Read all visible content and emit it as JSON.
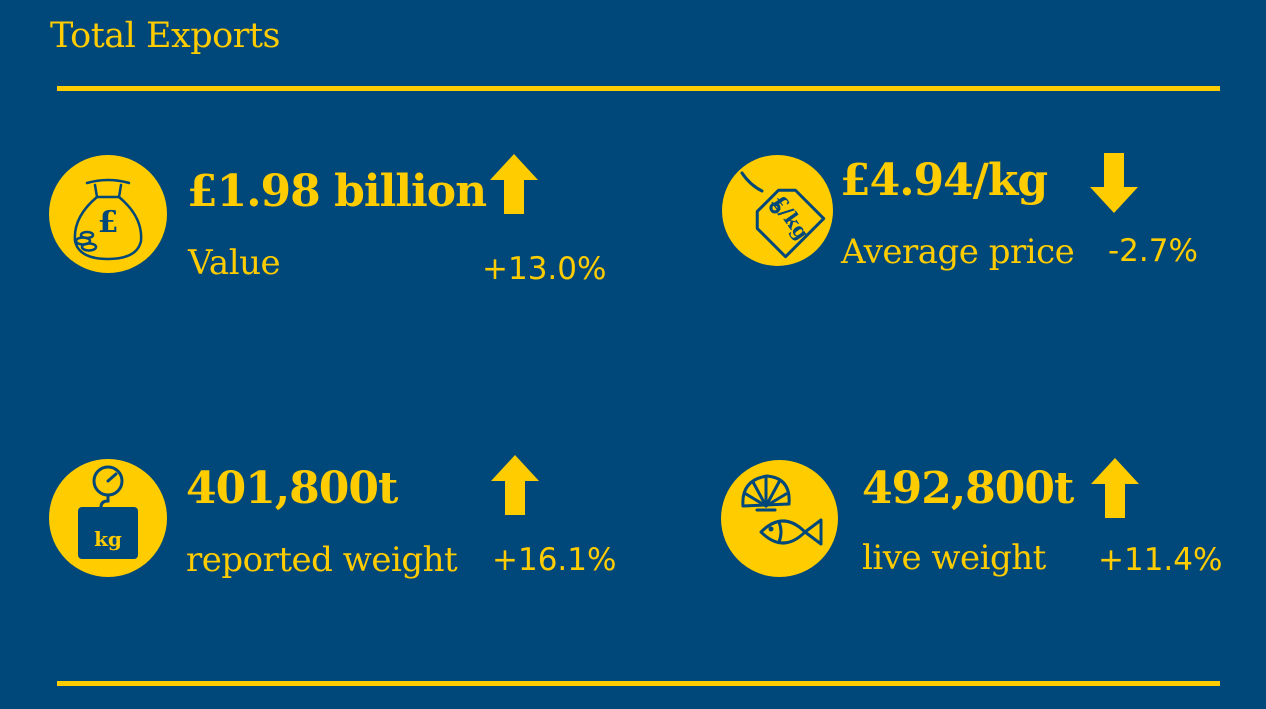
{
  "title": "Total Exports",
  "colors": {
    "background": "#00477a",
    "accent": "#ffcc00"
  },
  "metrics": [
    {
      "value": "£1.98 billion",
      "label": "Value",
      "change": "+13.0%",
      "direction": "up",
      "icon": "money-bag-icon",
      "icon_text": "£"
    },
    {
      "value": "£4.94/kg",
      "label": "Average price",
      "change": "-2.7%",
      "direction": "down",
      "icon": "price-tag-icon",
      "icon_text": "£/kg"
    },
    {
      "value": "401,800t",
      "label": "reported weight",
      "change": "+16.1%",
      "direction": "up",
      "icon": "weighing-scale-icon",
      "icon_text": "kg"
    },
    {
      "value": "492,800t",
      "label": "live weight",
      "change": "+11.4%",
      "direction": "up",
      "icon": "shellfish-fish-icon"
    }
  ]
}
